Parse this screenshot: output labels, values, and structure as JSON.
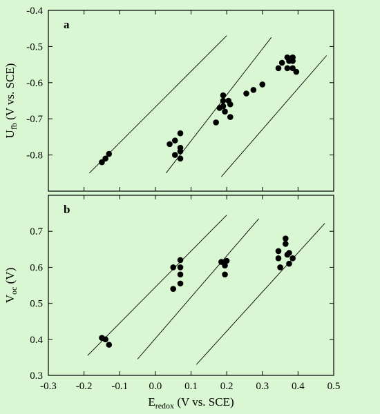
{
  "chart_data": [
    {
      "type": "scatter",
      "panel_label": "a",
      "ylabel": {
        "main": "U",
        "sub": "fb",
        "rest": " (V vs. SCE)"
      },
      "xlim": [
        -0.3,
        0.5
      ],
      "ylim": [
        -0.9,
        -0.4
      ],
      "y_ticks": [
        "-0.4",
        "-0.5",
        "-0.6",
        "-0.7",
        "-0.8"
      ],
      "y_tick_values": [
        -0.4,
        -0.5,
        -0.6,
        -0.7,
        -0.8
      ],
      "points": [
        [
          -0.15,
          -0.82
        ],
        [
          -0.14,
          -0.81
        ],
        [
          -0.13,
          -0.797
        ],
        [
          0.04,
          -0.77
        ],
        [
          0.055,
          -0.76
        ],
        [
          0.055,
          -0.8
        ],
        [
          0.07,
          -0.74
        ],
        [
          0.07,
          -0.78
        ],
        [
          0.07,
          -0.79
        ],
        [
          0.07,
          -0.81
        ],
        [
          0.17,
          -0.71
        ],
        [
          0.18,
          -0.67
        ],
        [
          0.19,
          -0.635
        ],
        [
          0.19,
          -0.65
        ],
        [
          0.19,
          -0.665
        ],
        [
          0.195,
          -0.68
        ],
        [
          0.205,
          -0.65
        ],
        [
          0.21,
          -0.66
        ],
        [
          0.21,
          -0.695
        ],
        [
          0.255,
          -0.63
        ],
        [
          0.275,
          -0.62
        ],
        [
          0.3,
          -0.605
        ],
        [
          0.345,
          -0.56
        ],
        [
          0.355,
          -0.545
        ],
        [
          0.37,
          -0.53
        ],
        [
          0.37,
          -0.56
        ],
        [
          0.375,
          -0.54
        ],
        [
          0.385,
          -0.53
        ],
        [
          0.385,
          -0.54
        ],
        [
          0.385,
          -0.56
        ],
        [
          0.395,
          -0.57
        ]
      ],
      "lines": [
        [
          [
            -0.185,
            -0.85
          ],
          [
            0.2,
            -0.47
          ]
        ],
        [
          [
            0.03,
            -0.85
          ],
          [
            0.325,
            -0.475
          ]
        ],
        [
          [
            0.185,
            -0.86
          ],
          [
            0.48,
            -0.525
          ]
        ]
      ]
    },
    {
      "type": "scatter",
      "panel_label": "b",
      "ylabel": {
        "main": "V",
        "sub": "oc",
        "rest": " (V)"
      },
      "xlabel": {
        "main": "E",
        "sub": "redox",
        "rest": " (V vs. SCE)"
      },
      "xlim": [
        -0.3,
        0.5
      ],
      "ylim": [
        0.3,
        0.8
      ],
      "x_ticks": [
        "-0.3",
        "-0.2",
        "-0.1",
        "0.0",
        "0.1",
        "0.2",
        "0.3",
        "0.4",
        "0.5"
      ],
      "x_tick_values": [
        -0.3,
        -0.2,
        -0.1,
        0.0,
        0.1,
        0.2,
        0.3,
        0.4,
        0.5
      ],
      "y_ticks": [
        "0.7",
        "0.6",
        "0.5",
        "0.4",
        "0.3"
      ],
      "y_tick_values": [
        0.7,
        0.6,
        0.5,
        0.4,
        0.3
      ],
      "points": [
        [
          -0.15,
          0.404
        ],
        [
          -0.14,
          0.4
        ],
        [
          -0.13,
          0.385
        ],
        [
          0.05,
          0.6
        ],
        [
          0.05,
          0.54
        ],
        [
          0.07,
          0.62
        ],
        [
          0.07,
          0.6
        ],
        [
          0.07,
          0.58
        ],
        [
          0.07,
          0.555
        ],
        [
          0.185,
          0.615
        ],
        [
          0.195,
          0.605
        ],
        [
          0.195,
          0.58
        ],
        [
          0.2,
          0.618
        ],
        [
          0.345,
          0.645
        ],
        [
          0.345,
          0.625
        ],
        [
          0.35,
          0.6
        ],
        [
          0.365,
          0.68
        ],
        [
          0.365,
          0.665
        ],
        [
          0.37,
          0.635
        ],
        [
          0.375,
          0.64
        ],
        [
          0.375,
          0.61
        ],
        [
          0.385,
          0.625
        ]
      ],
      "lines": [
        [
          [
            -0.19,
            0.355
          ],
          [
            0.2,
            0.745
          ]
        ],
        [
          [
            -0.05,
            0.345
          ],
          [
            0.29,
            0.735
          ]
        ],
        [
          [
            0.115,
            0.33
          ],
          [
            0.475,
            0.722
          ]
        ]
      ]
    }
  ]
}
